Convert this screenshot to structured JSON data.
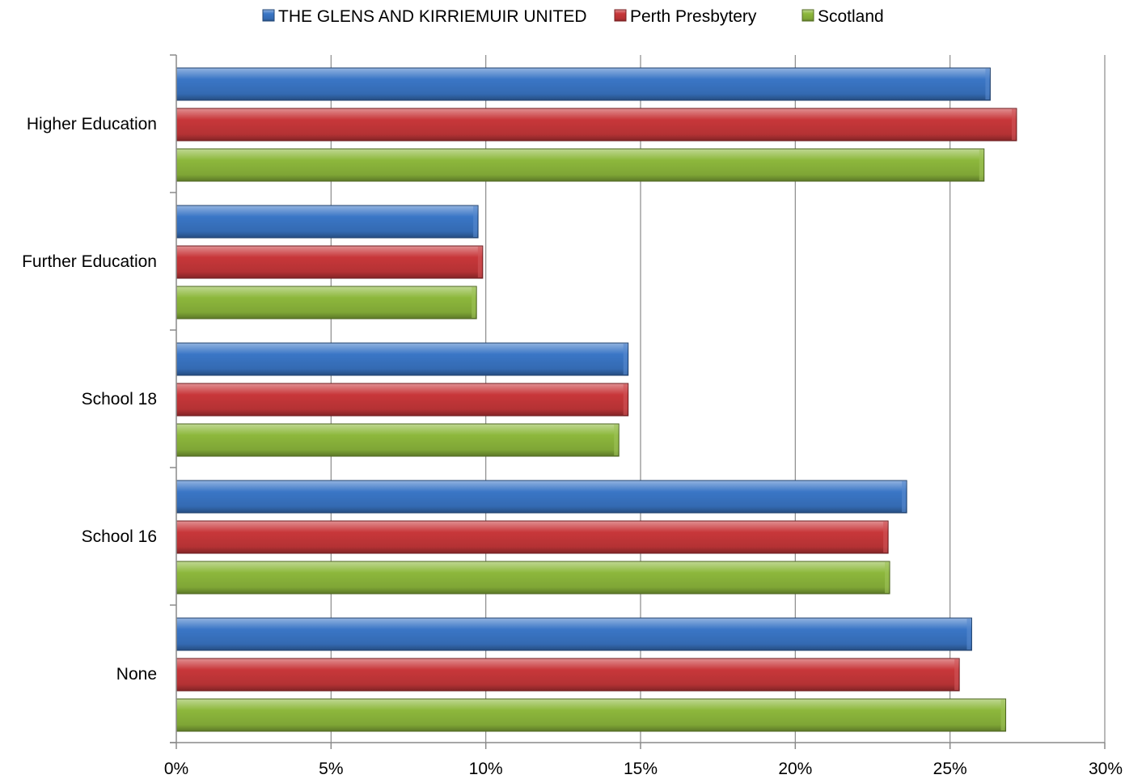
{
  "chart_data": {
    "type": "bar",
    "orientation": "horizontal",
    "categories": [
      "Higher Education",
      "Further Education",
      "School 18",
      "School 16",
      "None"
    ],
    "series": [
      {
        "name": "THE GLENS AND KIRRIEMUIR UNITED",
        "color": "#3A76C6",
        "values": [
          26.3,
          9.75,
          14.6,
          23.6,
          25.7
        ]
      },
      {
        "name": "Perth Presbytery",
        "color": "#C8373A",
        "values": [
          27.15,
          9.9,
          14.6,
          23.0,
          25.3
        ]
      },
      {
        "name": "Scotland",
        "color": "#8DB83C",
        "values": [
          26.1,
          9.7,
          14.3,
          23.05,
          26.8
        ]
      }
    ],
    "xlim": [
      0,
      30
    ],
    "xticks": [
      "0%",
      "5%",
      "10%",
      "15%",
      "20%",
      "25%",
      "30%"
    ],
    "grid": true,
    "legend_position": "top"
  }
}
